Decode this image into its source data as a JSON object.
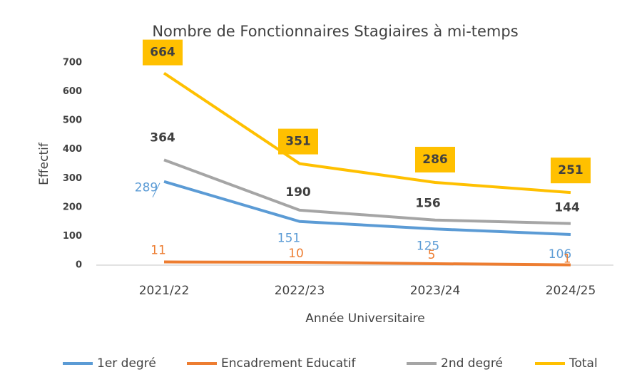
{
  "chart_data": {
    "type": "line",
    "title": "Nombre de Fonctionnaires Stagiaires à mi-temps",
    "xlabel": "Année Universitaire",
    "ylabel": "Effectif",
    "categories": [
      "2021/22",
      "2022/23",
      "2023/24",
      "2024/25"
    ],
    "series": [
      {
        "name": "1er degré",
        "color": "#5b9bd5",
        "values": [
          289,
          151,
          125,
          106
        ]
      },
      {
        "name": "Encadrement Educatif",
        "color": "#ed7d31",
        "values": [
          11,
          10,
          5,
          1
        ]
      },
      {
        "name": "2nd degré",
        "color": "#a5a5a5",
        "values": [
          364,
          190,
          156,
          144
        ]
      },
      {
        "name": "Total",
        "color": "#ffc000",
        "values": [
          664,
          351,
          286,
          251
        ]
      }
    ],
    "ylim": [
      0,
      700
    ],
    "yticks": [
      0,
      100,
      200,
      300,
      400,
      500,
      600,
      700
    ],
    "grid": false,
    "legend": "bottom"
  }
}
